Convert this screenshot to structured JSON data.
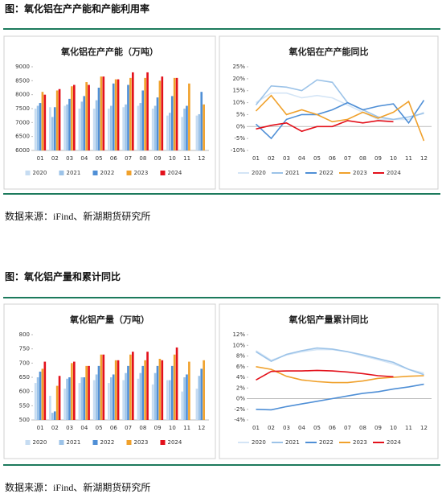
{
  "figures": [
    {
      "title": "图：氧化铝在产产能和产能利用率",
      "source": "数据来源：iFind、新湖期货研究所"
    },
    {
      "title": "图：氧化铝产量和累计同比",
      "source": "数据来源：iFind、新湖期货研究所"
    }
  ],
  "chart_data": [
    {
      "type": "bar",
      "title": "氧化铝在产产能（万吨）",
      "categories": [
        "01",
        "02",
        "03",
        "04",
        "05",
        "06",
        "07",
        "08",
        "09",
        "10",
        "11",
        "12"
      ],
      "ylim": [
        6000,
        9000
      ],
      "yticks": [
        6000,
        6500,
        7000,
        7500,
        8000,
        8500,
        9000
      ],
      "grid": false,
      "legend": "bottom",
      "series": [
        {
          "name": "2020",
          "color": "#c6dcf2",
          "values": [
            7500,
            7550,
            7600,
            7500,
            7500,
            7500,
            7550,
            7600,
            7500,
            7250,
            7200,
            7250
          ]
        },
        {
          "name": "2021",
          "color": "#9cc3e8",
          "values": [
            7600,
            7200,
            7650,
            7750,
            7800,
            7600,
            7650,
            7700,
            7600,
            7350,
            7500,
            7300
          ]
        },
        {
          "name": "2022",
          "color": "#4f8fd6",
          "values": [
            7700,
            7550,
            7850,
            7950,
            8250,
            8400,
            8350,
            8150,
            7900,
            7950,
            7600,
            8100
          ]
        },
        {
          "name": "2023",
          "color": "#f0a12c",
          "values": [
            8100,
            8150,
            8300,
            8450,
            8650,
            8550,
            8600,
            8600,
            8500,
            8600,
            8400,
            7650
          ]
        },
        {
          "name": "2024",
          "color": "#e3111b",
          "values": [
            8000,
            8200,
            8350,
            8350,
            8650,
            8550,
            8800,
            8800,
            8650,
            8600,
            null,
            null
          ]
        }
      ]
    },
    {
      "type": "line",
      "title": "氧化铝在产产能同比",
      "categories": [
        "01",
        "02",
        "03",
        "04",
        "05",
        "06",
        "07",
        "08",
        "09",
        "10",
        "11",
        "12"
      ],
      "ylim": [
        -10,
        25
      ],
      "yticks": [
        {
          "value": -10,
          "label": "-10%"
        },
        {
          "value": -5,
          "label": "-5%"
        },
        {
          "value": 0,
          "label": "0%"
        },
        {
          "value": 5,
          "label": "5%"
        },
        {
          "value": 10,
          "label": "10%"
        },
        {
          "value": 15,
          "label": "15%"
        },
        {
          "value": 20,
          "label": "20%"
        },
        {
          "value": 25,
          "label": "25%"
        }
      ],
      "grid": false,
      "legend": "bottom",
      "series": [
        {
          "name": "2020",
          "color": "#d4e5f6",
          "values": [
            10,
            14,
            14,
            12,
            13,
            12,
            9,
            6,
            3,
            3,
            3,
            6
          ]
        },
        {
          "name": "2021",
          "color": "#9cc3e8",
          "values": [
            9,
            17,
            16.5,
            15,
            19.5,
            18.5,
            10,
            7,
            4,
            3,
            4,
            5.5
          ]
        },
        {
          "name": "2022",
          "color": "#4f8fd6",
          "values": [
            1,
            -5,
            3,
            5,
            5,
            7,
            10,
            7,
            8.5,
            9.5,
            1.5,
            11
          ]
        },
        {
          "name": "2023",
          "color": "#f0a12c",
          "values": [
            6.5,
            13,
            5,
            7,
            5,
            2,
            3,
            6,
            3.5,
            6,
            10.5,
            -6
          ]
        },
        {
          "name": "2024",
          "color": "#e3111b",
          "values": [
            -1,
            0.5,
            1.5,
            -2,
            0,
            0,
            2.5,
            1.5,
            2.5,
            2,
            null,
            null
          ]
        }
      ]
    },
    {
      "type": "bar",
      "title": "氧化铝产量（万吨）",
      "categories": [
        "01",
        "02",
        "03",
        "04",
        "05",
        "06",
        "07",
        "08",
        "09",
        "10",
        "11",
        "12"
      ],
      "ylim": [
        500,
        800
      ],
      "yticks": [
        500,
        550,
        600,
        650,
        700,
        750,
        800
      ],
      "grid": false,
      "legend": "bottom",
      "series": [
        {
          "name": "2020",
          "color": "#c6dcf2",
          "values": [
            630,
            585,
            610,
            630,
            640,
            630,
            640,
            645,
            625,
            640,
            600,
            610
          ]
        },
        {
          "name": "2021",
          "color": "#9cc3e8",
          "values": [
            650,
            525,
            645,
            650,
            660,
            650,
            665,
            665,
            665,
            640,
            650,
            655
          ]
        },
        {
          "name": "2022",
          "color": "#4f8fd6",
          "values": [
            670,
            530,
            650,
            650,
            690,
            660,
            690,
            690,
            690,
            690,
            660,
            680
          ]
        },
        {
          "name": "2023",
          "color": "#f0a12c",
          "values": [
            680,
            620,
            700,
            690,
            730,
            710,
            730,
            710,
            715,
            730,
            705,
            710
          ]
        },
        {
          "name": "2024",
          "color": "#e3111b",
          "values": [
            705,
            655,
            705,
            690,
            730,
            710,
            740,
            740,
            710,
            755,
            null,
            null
          ]
        }
      ]
    },
    {
      "type": "line",
      "title": "氧化铝产量累计同比",
      "categories": [
        "01",
        "02",
        "03",
        "04",
        "05",
        "06",
        "07",
        "08",
        "09",
        "10",
        "11",
        "12"
      ],
      "ylim": [
        -4,
        12
      ],
      "yticks": [
        {
          "value": -4,
          "label": "-4%"
        },
        {
          "value": -2,
          "label": "-2%"
        },
        {
          "value": 0,
          "label": "0%"
        },
        {
          "value": 2,
          "label": "2%"
        },
        {
          "value": 4,
          "label": "4%"
        },
        {
          "value": 6,
          "label": "6%"
        },
        {
          "value": 8,
          "label": "8%"
        },
        {
          "value": 10,
          "label": "10%"
        },
        {
          "value": 12,
          "label": "12%"
        }
      ],
      "grid": false,
      "legend": "bottom",
      "series": [
        {
          "name": "2020",
          "color": "#d4e5f6",
          "values": [
            9,
            7.2,
            8.2,
            8.8,
            9.2,
            9.2,
            8.8,
            8,
            7.3,
            6.5,
            5.5,
            4.8
          ]
        },
        {
          "name": "2021",
          "color": "#9cc3e8",
          "values": [
            8.8,
            7,
            8.3,
            9,
            9.5,
            9.3,
            8.8,
            8.2,
            7.5,
            6.8,
            5.5,
            4.5
          ]
        },
        {
          "name": "2022",
          "color": "#4f8fd6",
          "values": [
            -2,
            -2.1,
            -1.5,
            -1,
            -0.5,
            0,
            0.5,
            1,
            1.3,
            1.8,
            2.2,
            2.7
          ]
        },
        {
          "name": "2023",
          "color": "#f0a12c",
          "values": [
            6,
            5.5,
            4.2,
            3.5,
            3.2,
            3,
            3,
            3.3,
            3.8,
            4,
            4.2,
            4.3
          ]
        },
        {
          "name": "2024",
          "color": "#e3111b",
          "values": [
            3.5,
            5.1,
            5.2,
            5.2,
            5.3,
            5.2,
            5,
            4.7,
            4.3,
            4.1,
            null,
            null
          ]
        }
      ]
    }
  ]
}
